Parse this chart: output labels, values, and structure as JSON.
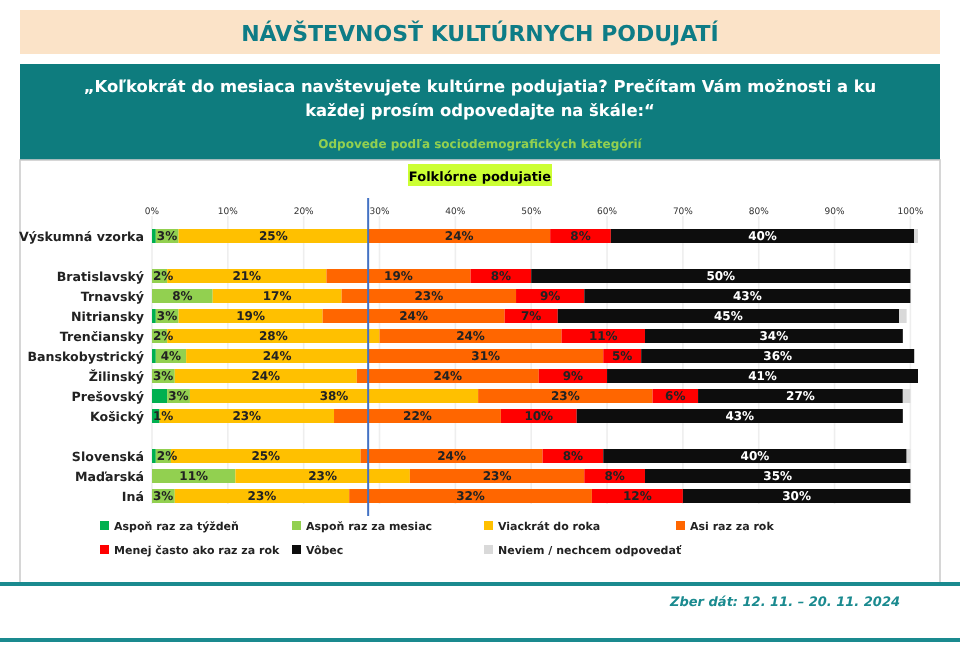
{
  "chart_data": {
    "type": "bar",
    "orientation": "horizontal",
    "stacked": true,
    "title": "NÁVŠTEVNOSŤ KULTÚRNYCH PODUJATÍ",
    "subtitle": "„Koľkokrát do mesiaca navštevujete kultúrne podujatia? Prečítam Vám možnosti a ku každej prosím odpovedajte na škále:“",
    "annotations": [
      "Odpovede podľa sociodemografických kategórií",
      "Folklórne podujatie",
      "Zber dát: 12. 11. – 20. 11. 2024"
    ],
    "categories": [
      "Výskumná vzorka",
      null,
      "Bratislavský",
      "Trnavský",
      "Nitriansky",
      "Trenčiansky",
      "Banskobystrický",
      "Žilinský",
      "Prešovský",
      "Košický",
      null,
      "Slovenská",
      "Maďarská",
      "Iná"
    ],
    "xlim": [
      0,
      101
    ],
    "xticks": [
      {
        "value": 0,
        "label": "0%"
      },
      {
        "value": 10,
        "label": "10%"
      },
      {
        "value": 20,
        "label": "20%"
      },
      {
        "value": 30,
        "label": "30%"
      },
      {
        "value": 40,
        "label": "40%"
      },
      {
        "value": 50,
        "label": "50%"
      },
      {
        "value": 60,
        "label": "60%"
      },
      {
        "value": 70,
        "label": "70%"
      },
      {
        "value": 80,
        "label": "80%"
      },
      {
        "value": 90,
        "label": "90%"
      },
      {
        "value": 100,
        "label": "100%"
      }
    ],
    "grid": "x",
    "legend": "bottom",
    "ref_lines": [
      {
        "axis": "x",
        "value": 28.5,
        "color": "#4472c4"
      }
    ],
    "series": [
      {
        "name": "Aspoň raz za týždeň",
        "color": "#00b050",
        "values": [
          0.5,
          null,
          0,
          0,
          0.5,
          0,
          0.5,
          0,
          2,
          1,
          null,
          0.5,
          0,
          0
        ],
        "value_labels": [
          null,
          null,
          null,
          null,
          null,
          null,
          null,
          null,
          null,
          "1%",
          null,
          null,
          null,
          null
        ]
      },
      {
        "name": "Aspoň raz za mesiac",
        "color": "#92d050",
        "values": [
          3,
          null,
          2,
          8,
          3,
          2,
          4,
          3,
          3,
          0,
          null,
          2,
          11,
          3
        ],
        "value_labels": [
          "3%",
          null,
          "2%",
          "8%",
          "3%",
          "2%",
          "4%",
          "3%",
          "3%",
          null,
          null,
          "2%",
          "11%",
          "3%"
        ]
      },
      {
        "name": "Viackrát do roka",
        "color": "#ffc000",
        "values": [
          25,
          null,
          21,
          17,
          19,
          28,
          24,
          24,
          38,
          23,
          null,
          25,
          23,
          23
        ],
        "value_labels": [
          "25%",
          null,
          "21%",
          "17%",
          "19%",
          "28%",
          "24%",
          "24%",
          "38%",
          "23%",
          null,
          "25%",
          "23%",
          "23%"
        ]
      },
      {
        "name": "Asi raz za rok",
        "color": "#ff6600",
        "values": [
          24,
          null,
          19,
          23,
          24,
          24,
          31,
          24,
          23,
          22,
          null,
          24,
          23,
          32
        ],
        "value_labels": [
          "24%",
          null,
          "19%",
          "23%",
          "24%",
          "24%",
          "31%",
          "24%",
          "23%",
          "22%",
          null,
          "24%",
          "23%",
          "32%"
        ]
      },
      {
        "name": "Menej často ako raz za rok",
        "color": "#ff0000",
        "values": [
          8,
          null,
          8,
          9,
          7,
          11,
          5,
          9,
          6,
          10,
          null,
          8,
          8,
          12
        ],
        "value_labels": [
          "8%",
          null,
          "8%",
          "9%",
          "7%",
          "11%",
          "5%",
          "9%",
          "6%",
          "10%",
          null,
          "8%",
          "8%",
          "12%"
        ]
      },
      {
        "name": "Vôbec",
        "color": "#0d0d0d",
        "values": [
          40,
          null,
          50,
          43,
          45,
          34,
          36,
          41,
          27,
          43,
          null,
          40,
          35,
          30
        ],
        "value_labels": [
          "40%",
          null,
          "50%",
          "43%",
          "45%",
          "34%",
          "36%",
          "41%",
          "27%",
          "43%",
          null,
          "40%",
          "35%",
          "30%"
        ]
      },
      {
        "name": "Neviem / nechcem odpovedať",
        "color": "#d9d9d9",
        "values": [
          0.5,
          null,
          0,
          0,
          1,
          0,
          0,
          0,
          1,
          0,
          null,
          0.5,
          0,
          0
        ],
        "value_labels": [
          null,
          null,
          null,
          null,
          null,
          null,
          null,
          null,
          null,
          null,
          null,
          null,
          null,
          null
        ]
      }
    ]
  }
}
